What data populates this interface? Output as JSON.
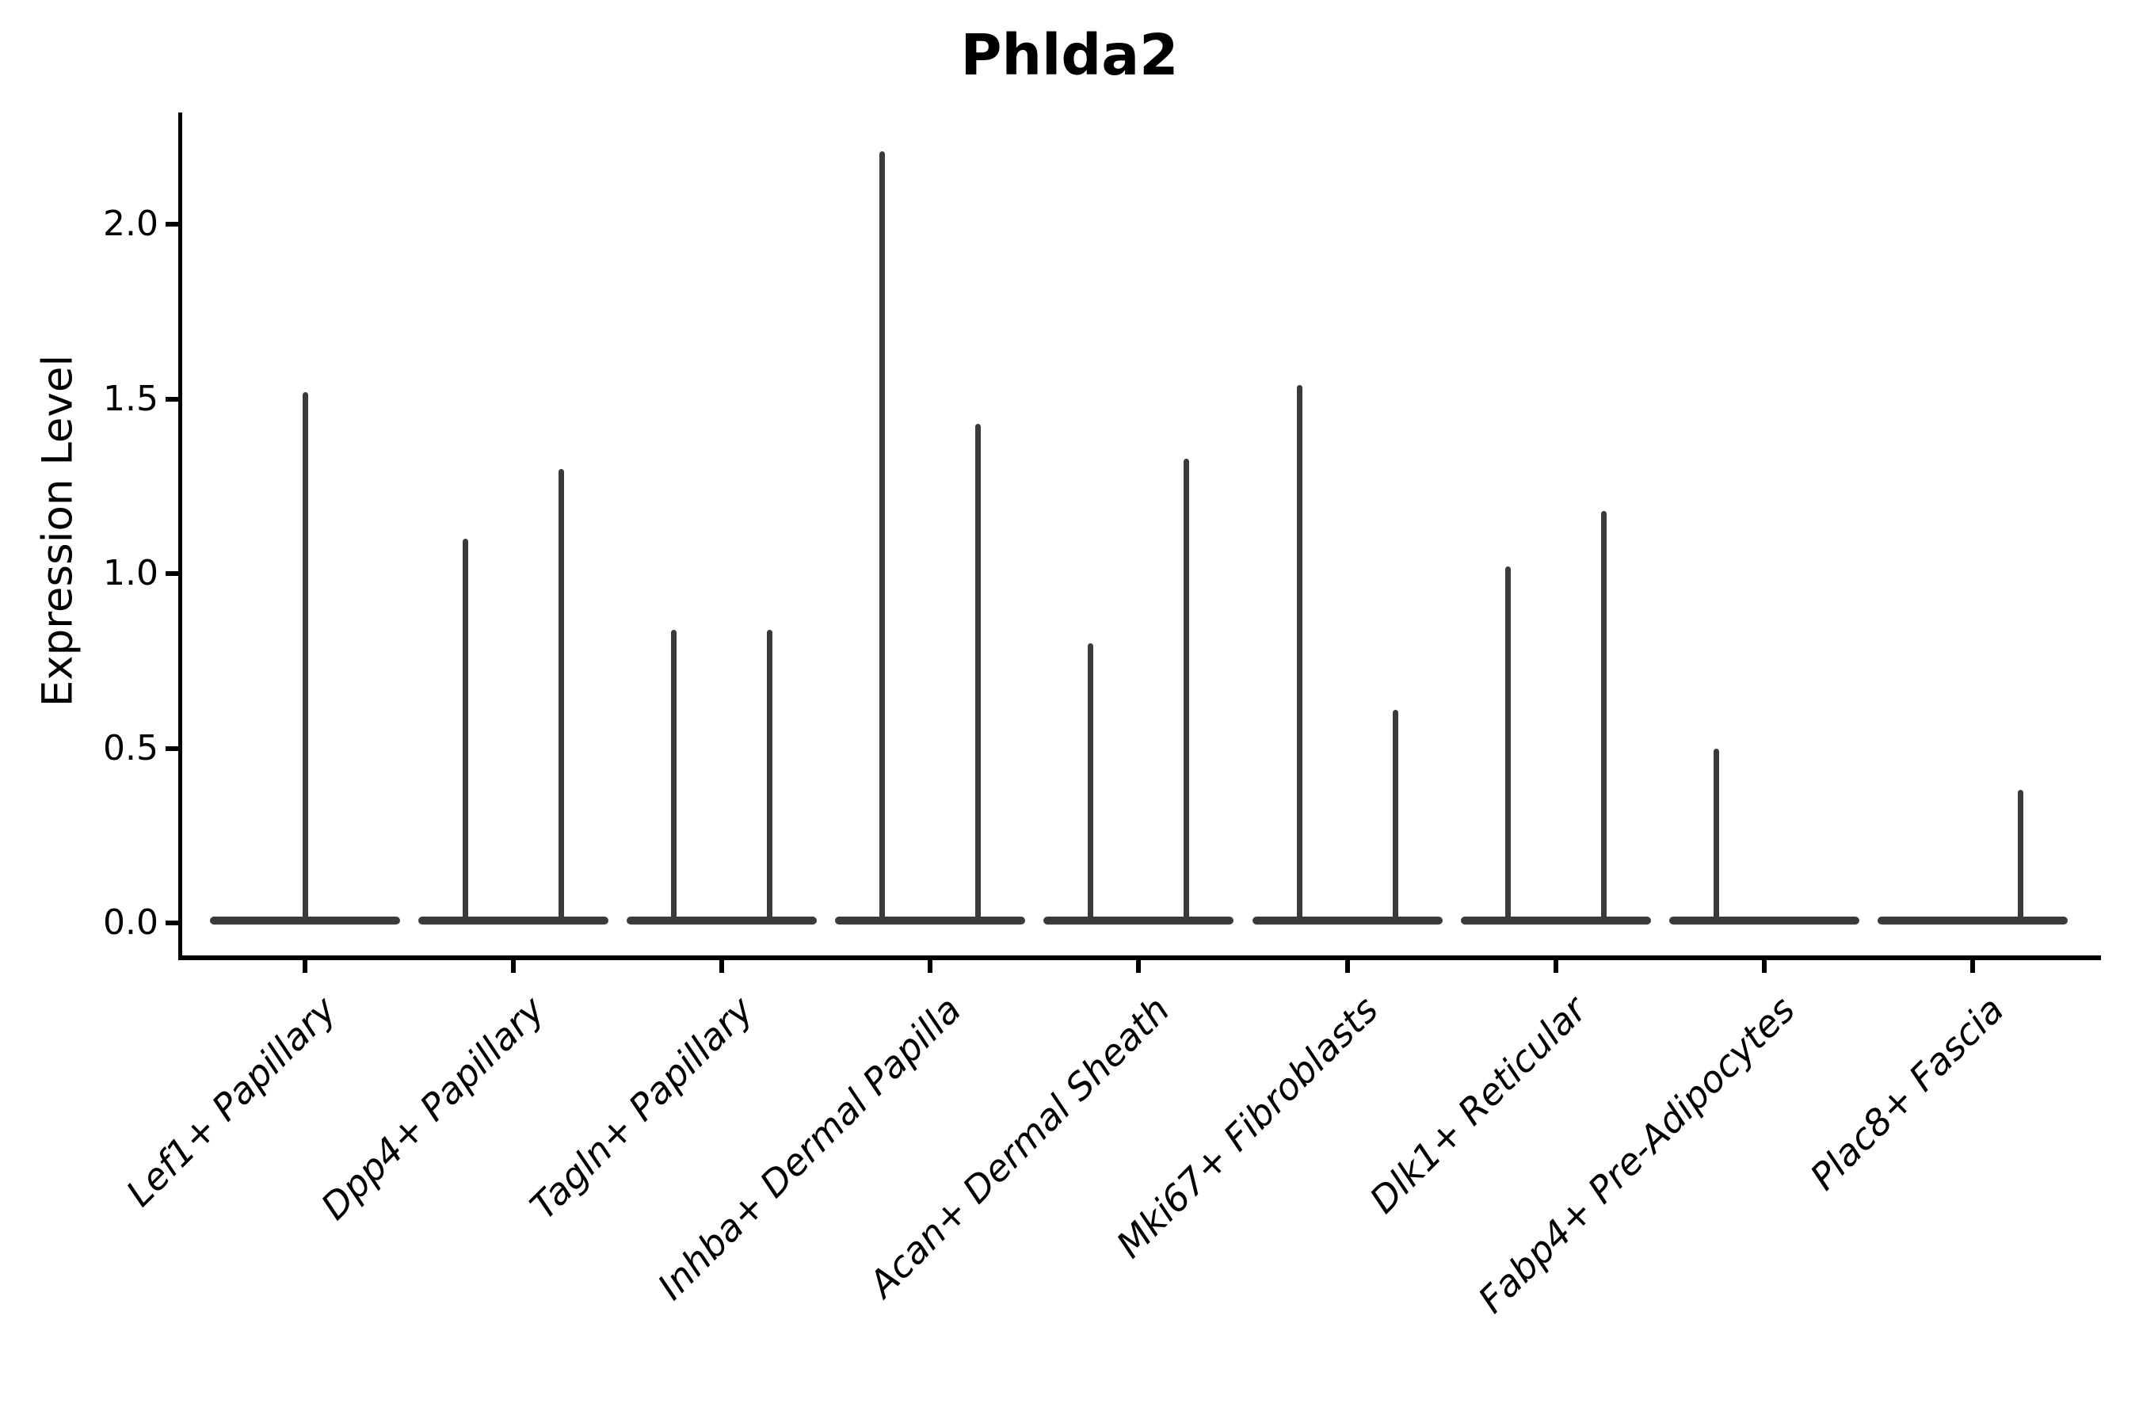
{
  "chart_data": {
    "type": "violin",
    "title": "Phlda2",
    "ylabel": "Expression Level",
    "xlabel": "",
    "legend": "none",
    "grid": false,
    "background_color": "#ffffff",
    "axis_color": "#000000",
    "violin_color": "#3a3a3a",
    "ylim": [
      -0.1,
      2.32
    ],
    "ytick_labels": [
      "0.0",
      "0.5",
      "1.0",
      "1.5",
      "2.0"
    ],
    "ytick_values": [
      0.0,
      0.5,
      1.0,
      1.5,
      2.0
    ],
    "categories": [
      "Lef1+ Papillary",
      "Dpp4+ Papillary",
      "Tagln+ Papillary",
      "Inhba+ Dermal Papilla",
      "Acan+ Dermal Sheath",
      "Mki67+ Fibroblasts",
      "Dlk1+ Reticular",
      "Fabp4+ Pre-Adipocytes",
      "Plac8+ Fascia"
    ],
    "groups": [
      {
        "label": "Lef1+ Papillary",
        "violins": [
          {
            "position": "center",
            "max_expression": 1.52
          }
        ]
      },
      {
        "label": "Dpp4+ Papillary",
        "violins": [
          {
            "position": "left",
            "max_expression": 1.1
          },
          {
            "position": "right",
            "max_expression": 1.3
          }
        ]
      },
      {
        "label": "Tagln+ Papillary",
        "violins": [
          {
            "position": "left",
            "max_expression": 0.84
          },
          {
            "position": "right",
            "max_expression": 0.84
          }
        ]
      },
      {
        "label": "Inhba+ Dermal Papilla",
        "violins": [
          {
            "position": "left",
            "max_expression": 2.21
          },
          {
            "position": "right",
            "max_expression": 1.43
          }
        ]
      },
      {
        "label": "Acan+ Dermal Sheath",
        "violins": [
          {
            "position": "left",
            "max_expression": 0.8
          },
          {
            "position": "right",
            "max_expression": 1.33
          }
        ]
      },
      {
        "label": "Mki67+ Fibroblasts",
        "violins": [
          {
            "position": "left",
            "max_expression": 1.54
          },
          {
            "position": "right",
            "max_expression": 0.61
          }
        ]
      },
      {
        "label": "Dlk1+ Reticular",
        "violins": [
          {
            "position": "left",
            "max_expression": 1.02
          },
          {
            "position": "right",
            "max_expression": 1.18
          }
        ]
      },
      {
        "label": "Fabp4+ Pre-Adipocytes",
        "violins": [
          {
            "position": "left",
            "max_expression": 0.5
          },
          {
            "position": "right",
            "max_expression": 0.0
          }
        ]
      },
      {
        "label": "Plac8+ Fascia",
        "violins": [
          {
            "position": "left",
            "max_expression": 0.0
          },
          {
            "position": "right",
            "max_expression": 0.38
          }
        ]
      }
    ],
    "notes": "Violin plot of gene expression; each cluster shows flat-based violins at 0 with thin spikes up to the maximum expressing cells."
  }
}
